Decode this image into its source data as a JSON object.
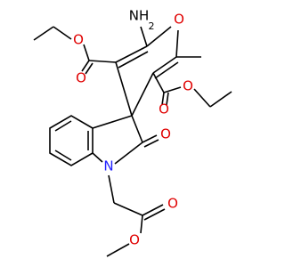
{
  "atoms": [
    {
      "label": "NH",
      "sub": "2"
    },
    {
      "label": "O"
    },
    {
      "label": "O"
    },
    {
      "label": "O"
    },
    {
      "label": "O"
    },
    {
      "label": "O"
    },
    {
      "label": "O"
    },
    {
      "label": "N"
    },
    {
      "label": "O"
    },
    {
      "label": "O"
    }
  ]
}
